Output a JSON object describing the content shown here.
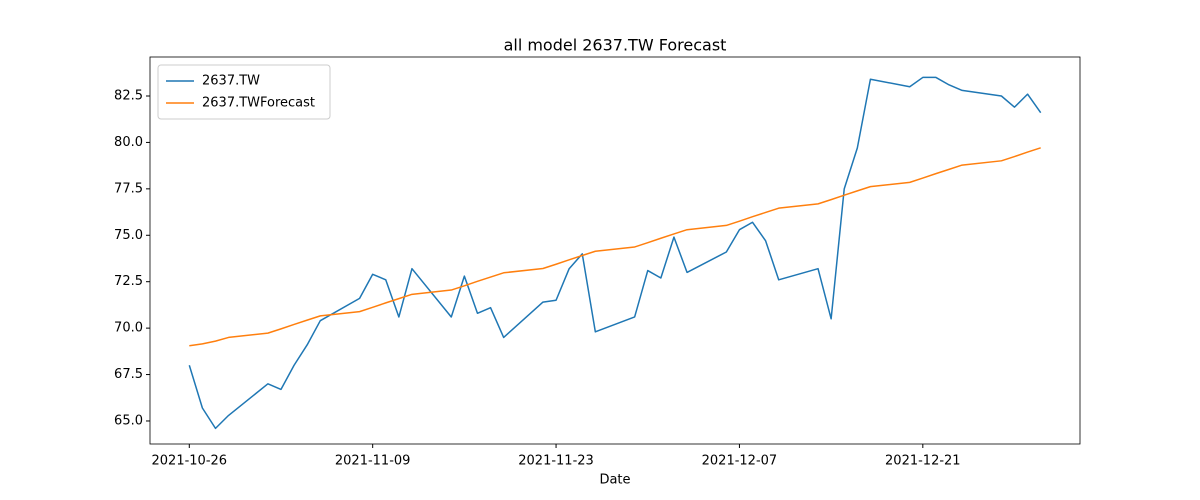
{
  "chart_data": {
    "type": "line",
    "title": "all model 2637.TW Forecast",
    "x_label": "Date",
    "x": [
      "2021-10-26",
      "2021-10-27",
      "2021-10-28",
      "2021-10-29",
      "2021-11-01",
      "2021-11-02",
      "2021-11-03",
      "2021-11-04",
      "2021-11-05",
      "2021-11-08",
      "2021-11-09",
      "2021-11-10",
      "2021-11-11",
      "2021-11-12",
      "2021-11-15",
      "2021-11-16",
      "2021-11-17",
      "2021-11-18",
      "2021-11-19",
      "2021-11-22",
      "2021-11-23",
      "2021-11-24",
      "2021-11-25",
      "2021-11-26",
      "2021-11-29",
      "2021-11-30",
      "2021-12-01",
      "2021-12-02",
      "2021-12-03",
      "2021-12-06",
      "2021-12-07",
      "2021-12-08",
      "2021-12-09",
      "2021-12-10",
      "2021-12-13",
      "2021-12-14",
      "2021-12-15",
      "2021-12-16",
      "2021-12-17",
      "2021-12-20",
      "2021-12-21",
      "2021-12-22",
      "2021-12-23",
      "2021-12-24",
      "2021-12-27",
      "2021-12-28",
      "2021-12-29",
      "2021-12-30"
    ],
    "series": [
      {
        "name": "2637.TW",
        "color": "#1f77b4",
        "values": [
          68.0,
          65.7,
          64.6,
          65.3,
          67.0,
          66.7,
          68.0,
          69.1,
          70.4,
          71.6,
          72.9,
          72.6,
          70.6,
          73.2,
          70.6,
          72.8,
          70.8,
          71.1,
          69.5,
          71.4,
          71.5,
          73.2,
          74.0,
          69.8,
          70.6,
          73.1,
          72.7,
          74.9,
          73.0,
          74.1,
          75.3,
          75.7,
          74.7,
          72.6,
          73.2,
          70.5,
          77.5,
          79.7,
          83.4,
          83.0,
          83.5,
          83.5,
          83.1,
          82.8,
          82.5,
          81.9,
          82.6,
          81.6
        ]
      },
      {
        "name": "2637.TWForecast",
        "color": "#ff7f0e",
        "values": [
          69.05,
          69.15,
          69.3,
          69.5,
          69.73,
          69.96,
          70.2,
          70.43,
          70.66,
          70.89,
          71.12,
          71.36,
          71.59,
          71.82,
          72.05,
          72.28,
          72.52,
          72.75,
          72.98,
          73.21,
          73.44,
          73.68,
          73.91,
          74.14,
          74.37,
          74.6,
          74.84,
          75.07,
          75.3,
          75.53,
          75.76,
          76.0,
          76.23,
          76.46,
          76.69,
          76.92,
          77.16,
          77.39,
          77.62,
          77.85,
          78.08,
          78.32,
          78.55,
          78.78,
          79.01,
          79.24,
          79.48,
          79.71
        ]
      }
    ],
    "xlim": [
      "2021-10-23",
      "2022-01-02"
    ],
    "xticks": [
      "2021-10-26",
      "2021-11-09",
      "2021-11-23",
      "2021-12-07",
      "2021-12-21"
    ],
    "ylim": [
      63.76,
      84.6
    ],
    "yticks": [
      {
        "value": 65,
        "label": "65.0"
      },
      {
        "value": 67.5,
        "label": "67.5"
      },
      {
        "value": 70,
        "label": "70.0"
      },
      {
        "value": 72.5,
        "label": "72.5"
      },
      {
        "value": 75,
        "label": "75.0"
      },
      {
        "value": 77.5,
        "label": "77.5"
      },
      {
        "value": 80,
        "label": "80.0"
      },
      {
        "value": 82.5,
        "label": "82.5"
      }
    ],
    "legend": "upper left",
    "grid": false
  }
}
